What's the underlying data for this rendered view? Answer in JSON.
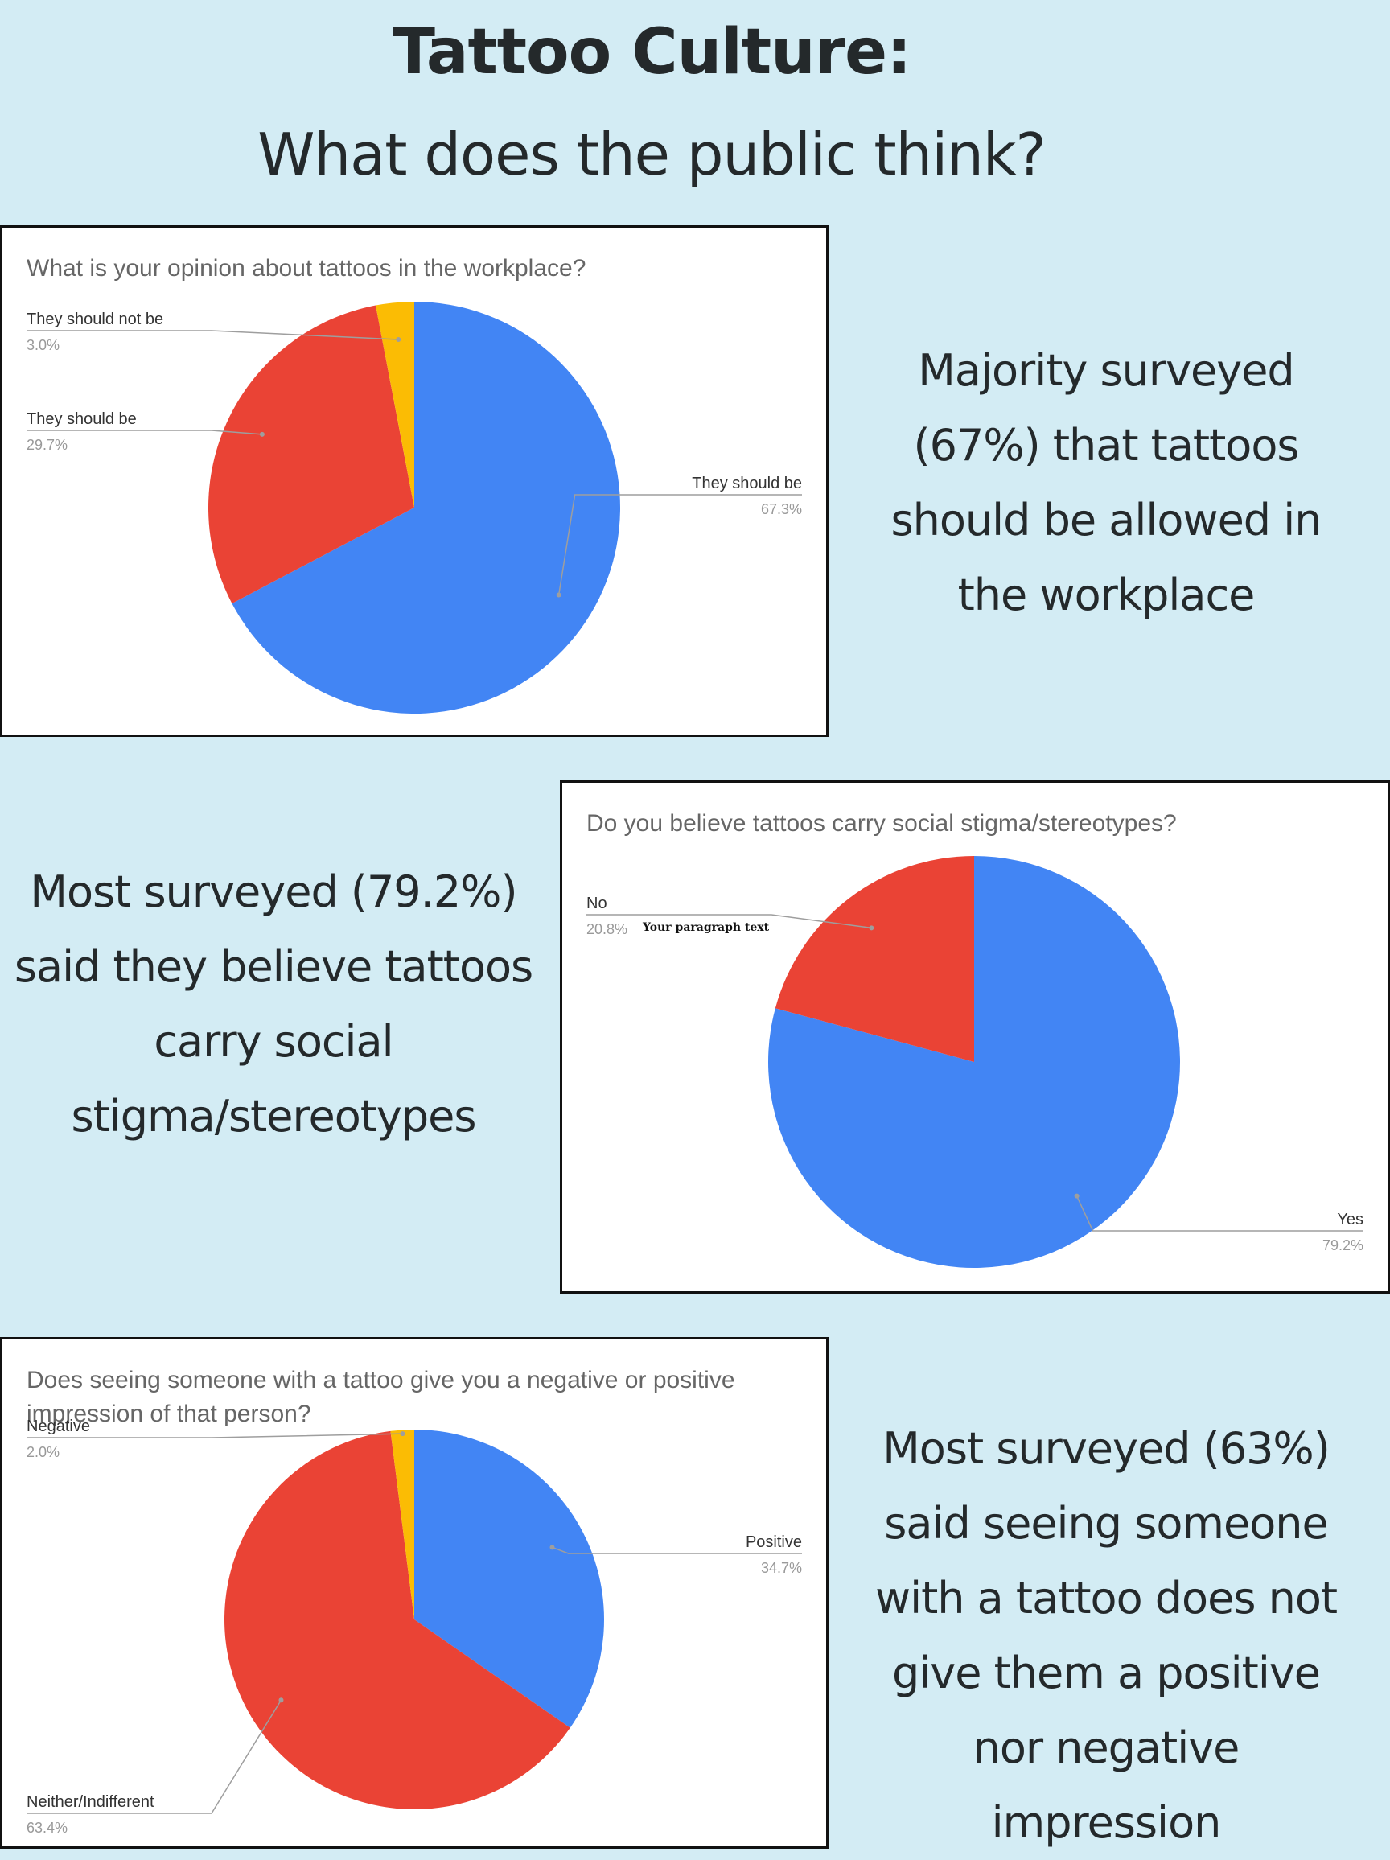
{
  "header": {
    "title": "Tattoo Culture:",
    "subtitle": "What does the public think?"
  },
  "captions": [
    "Majority surveyed (67%) that tattoos should be allowed in the workplace",
    "Most surveyed (79.2%) said they believe tattoos carry social stigma/stereotypes",
    "Most surveyed (63%) said seeing someone with a tattoo does not give them a positive nor negative impression"
  ],
  "overlay_note": "Your paragraph text",
  "chart_data": [
    {
      "type": "pie",
      "title": "What is your opinion about tattoos in the workplace?",
      "slices": [
        {
          "label": "They should be",
          "value": 67.3,
          "display": "67.3%",
          "color": "#4285f4"
        },
        {
          "label": "They should be",
          "value": 29.7,
          "display": "29.7%",
          "color": "#ea4335"
        },
        {
          "label": "They should not be",
          "value": 3.0,
          "display": "3.0%",
          "color": "#fbbc04"
        }
      ]
    },
    {
      "type": "pie",
      "title": "Do you believe tattoos carry social stigma/stereotypes?",
      "slices": [
        {
          "label": "Yes",
          "value": 79.2,
          "display": "79.2%",
          "color": "#4285f4"
        },
        {
          "label": "No",
          "value": 20.8,
          "display": "20.8%",
          "color": "#ea4335"
        }
      ]
    },
    {
      "type": "pie",
      "title": "Does seeing someone with a tattoo give you a negative or positive impression of that person?",
      "slices": [
        {
          "label": "Positive",
          "value": 34.7,
          "display": "34.7%",
          "color": "#4285f4"
        },
        {
          "label": "Neither/Indifferent",
          "value": 63.4,
          "display": "63.4%",
          "color": "#ea4335"
        },
        {
          "label": "Negative",
          "value": 2.0,
          "display": "2.0%",
          "color": "#fbbc04"
        }
      ]
    }
  ]
}
